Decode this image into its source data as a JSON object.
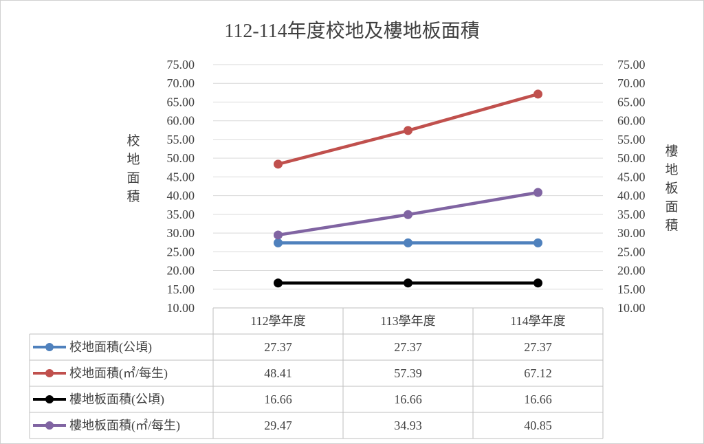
{
  "chart_data": {
    "type": "line",
    "title": "112-114年度校地及樓地板面積",
    "ylabel_left": "校地面積",
    "ylabel_right": "樓地板面積",
    "categories": [
      "112學年度",
      "113學年度",
      "114學年度"
    ],
    "ylim": [
      10,
      75
    ],
    "y_step": 5,
    "y_ticks": [
      "10.00",
      "15.00",
      "20.00",
      "25.00",
      "30.00",
      "35.00",
      "40.00",
      "45.00",
      "50.00",
      "55.00",
      "60.00",
      "65.00",
      "70.00",
      "75.00"
    ],
    "grid": true,
    "legend": "data-table",
    "series": [
      {
        "name": "校地面積(公頃)",
        "color": "#4f81bd",
        "values": [
          27.37,
          27.37,
          27.37
        ],
        "labels": [
          "27.37",
          "27.37",
          "27.37"
        ]
      },
      {
        "name": "校地面積(㎡/每生)",
        "color": "#c0504d",
        "values": [
          48.41,
          57.39,
          67.12
        ],
        "labels": [
          "48.41",
          "57.39",
          "67.12"
        ]
      },
      {
        "name": "樓地板面積(公頃)",
        "color": "#000000",
        "values": [
          16.66,
          16.66,
          16.66
        ],
        "labels": [
          "16.66",
          "16.66",
          "16.66"
        ]
      },
      {
        "name": "樓地板面積(㎡/每生)",
        "color": "#8064a2",
        "values": [
          29.47,
          34.93,
          40.85
        ],
        "labels": [
          "29.47",
          "34.93",
          "40.85"
        ]
      }
    ]
  }
}
